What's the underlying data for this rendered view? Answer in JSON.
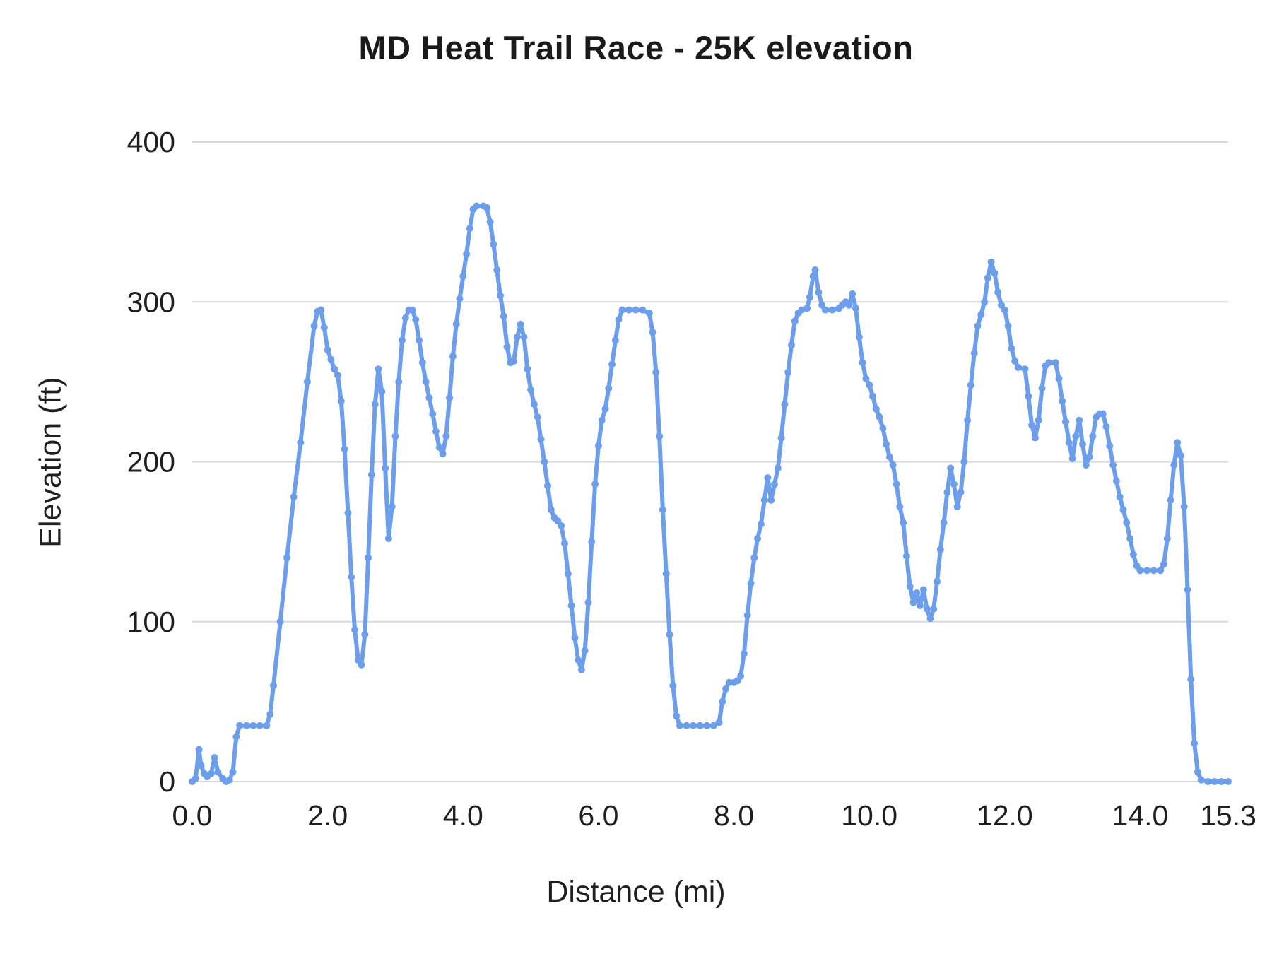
{
  "title": "MD Heat Trail Race - 25K elevation",
  "chart_data": {
    "type": "line",
    "title": "MD Heat Trail Race - 25K elevation",
    "xlabel": "Distance (mi)",
    "ylabel": "Elevation (ft)",
    "xlim": [
      0,
      15.3
    ],
    "ylim": [
      0,
      400
    ],
    "x_ticks": [
      0,
      2,
      4,
      6,
      8,
      10,
      12,
      14,
      15.3
    ],
    "x_tick_labels": [
      "0.0",
      "2.0",
      "4.0",
      "6.0",
      "8.0",
      "10.0",
      "12.0",
      "14.0",
      "15.3"
    ],
    "y_ticks": [
      0,
      100,
      200,
      300,
      400
    ],
    "y_tick_labels": [
      "0",
      "100",
      "200",
      "300",
      "400"
    ],
    "grid": "horizontal",
    "gridline_color": "#d9d9d9",
    "line_color": "#6d9eeb",
    "background_color": "#ffffff",
    "legend": "none",
    "series": [
      {
        "name": "Elevation",
        "points": [
          [
            0,
            0
          ],
          [
            0.05,
            2
          ],
          [
            0.1,
            20
          ],
          [
            0.13,
            10
          ],
          [
            0.18,
            5
          ],
          [
            0.22,
            3
          ],
          [
            0.28,
            5
          ],
          [
            0.33,
            15
          ],
          [
            0.38,
            6
          ],
          [
            0.45,
            2
          ],
          [
            0.5,
            0
          ],
          [
            0.55,
            1
          ],
          [
            0.6,
            6
          ],
          [
            0.65,
            28
          ],
          [
            0.7,
            35
          ],
          [
            0.8,
            35
          ],
          [
            0.9,
            35
          ],
          [
            1.0,
            35
          ],
          [
            1.1,
            35
          ],
          [
            1.15,
            42
          ],
          [
            1.2,
            60
          ],
          [
            1.3,
            100
          ],
          [
            1.4,
            140
          ],
          [
            1.5,
            178
          ],
          [
            1.6,
            212
          ],
          [
            1.7,
            250
          ],
          [
            1.8,
            285
          ],
          [
            1.85,
            294
          ],
          [
            1.9,
            295
          ],
          [
            1.95,
            284
          ],
          [
            2.0,
            270
          ],
          [
            2.05,
            264
          ],
          [
            2.1,
            258
          ],
          [
            2.15,
            254
          ],
          [
            2.2,
            238
          ],
          [
            2.25,
            208
          ],
          [
            2.3,
            168
          ],
          [
            2.35,
            128
          ],
          [
            2.4,
            95
          ],
          [
            2.45,
            76
          ],
          [
            2.5,
            73
          ],
          [
            2.55,
            92
          ],
          [
            2.6,
            140
          ],
          [
            2.65,
            192
          ],
          [
            2.7,
            236
          ],
          [
            2.75,
            258
          ],
          [
            2.8,
            244
          ],
          [
            2.85,
            196
          ],
          [
            2.9,
            152
          ],
          [
            2.95,
            172
          ],
          [
            3.0,
            216
          ],
          [
            3.05,
            250
          ],
          [
            3.1,
            276
          ],
          [
            3.15,
            290
          ],
          [
            3.2,
            295
          ],
          [
            3.25,
            295
          ],
          [
            3.3,
            289
          ],
          [
            3.35,
            276
          ],
          [
            3.4,
            262
          ],
          [
            3.45,
            250
          ],
          [
            3.5,
            240
          ],
          [
            3.55,
            230
          ],
          [
            3.6,
            219
          ],
          [
            3.65,
            209
          ],
          [
            3.7,
            205
          ],
          [
            3.75,
            216
          ],
          [
            3.8,
            240
          ],
          [
            3.85,
            266
          ],
          [
            3.9,
            286
          ],
          [
            3.95,
            302
          ],
          [
            4.0,
            316
          ],
          [
            4.05,
            330
          ],
          [
            4.1,
            346
          ],
          [
            4.15,
            358
          ],
          [
            4.2,
            360
          ],
          [
            4.3,
            360
          ],
          [
            4.35,
            359
          ],
          [
            4.4,
            350
          ],
          [
            4.45,
            336
          ],
          [
            4.5,
            320
          ],
          [
            4.55,
            304
          ],
          [
            4.6,
            291
          ],
          [
            4.65,
            272
          ],
          [
            4.7,
            262
          ],
          [
            4.75,
            263
          ],
          [
            4.8,
            278
          ],
          [
            4.85,
            286
          ],
          [
            4.9,
            278
          ],
          [
            4.95,
            258
          ],
          [
            5.0,
            245
          ],
          [
            5.05,
            236
          ],
          [
            5.1,
            228
          ],
          [
            5.15,
            214
          ],
          [
            5.2,
            200
          ],
          [
            5.25,
            185
          ],
          [
            5.3,
            170
          ],
          [
            5.35,
            165
          ],
          [
            5.4,
            163
          ],
          [
            5.45,
            160
          ],
          [
            5.5,
            149
          ],
          [
            5.55,
            130
          ],
          [
            5.6,
            110
          ],
          [
            5.65,
            90
          ],
          [
            5.7,
            76
          ],
          [
            5.75,
            70
          ],
          [
            5.8,
            82
          ],
          [
            5.85,
            112
          ],
          [
            5.9,
            150
          ],
          [
            5.95,
            186
          ],
          [
            6.0,
            210
          ],
          [
            6.05,
            226
          ],
          [
            6.1,
            233
          ],
          [
            6.15,
            246
          ],
          [
            6.2,
            261
          ],
          [
            6.25,
            276
          ],
          [
            6.3,
            289
          ],
          [
            6.35,
            295
          ],
          [
            6.45,
            295
          ],
          [
            6.55,
            295
          ],
          [
            6.65,
            295
          ],
          [
            6.75,
            293
          ],
          [
            6.8,
            281
          ],
          [
            6.85,
            256
          ],
          [
            6.9,
            216
          ],
          [
            6.95,
            170
          ],
          [
            7.0,
            130
          ],
          [
            7.05,
            92
          ],
          [
            7.1,
            60
          ],
          [
            7.15,
            41
          ],
          [
            7.2,
            35
          ],
          [
            7.3,
            35
          ],
          [
            7.4,
            35
          ],
          [
            7.5,
            35
          ],
          [
            7.6,
            35
          ],
          [
            7.7,
            35
          ],
          [
            7.78,
            37
          ],
          [
            7.83,
            50
          ],
          [
            7.88,
            58
          ],
          [
            7.93,
            62
          ],
          [
            8.0,
            62
          ],
          [
            8.05,
            63
          ],
          [
            8.1,
            66
          ],
          [
            8.15,
            80
          ],
          [
            8.2,
            104
          ],
          [
            8.25,
            124
          ],
          [
            8.3,
            140
          ],
          [
            8.35,
            152
          ],
          [
            8.4,
            161
          ],
          [
            8.45,
            176
          ],
          [
            8.5,
            190
          ],
          [
            8.55,
            176
          ],
          [
            8.6,
            186
          ],
          [
            8.65,
            196
          ],
          [
            8.7,
            215
          ],
          [
            8.75,
            236
          ],
          [
            8.8,
            256
          ],
          [
            8.85,
            273
          ],
          [
            8.9,
            288
          ],
          [
            8.95,
            293
          ],
          [
            9.0,
            295
          ],
          [
            9.08,
            296
          ],
          [
            9.12,
            303
          ],
          [
            9.17,
            316
          ],
          [
            9.2,
            320
          ],
          [
            9.25,
            306
          ],
          [
            9.3,
            298
          ],
          [
            9.35,
            295
          ],
          [
            9.45,
            295
          ],
          [
            9.55,
            296
          ],
          [
            9.6,
            298
          ],
          [
            9.65,
            300
          ],
          [
            9.7,
            298
          ],
          [
            9.75,
            305
          ],
          [
            9.8,
            296
          ],
          [
            9.85,
            278
          ],
          [
            9.9,
            262
          ],
          [
            9.95,
            252
          ],
          [
            10.0,
            248
          ],
          [
            10.05,
            241
          ],
          [
            10.1,
            233
          ],
          [
            10.15,
            228
          ],
          [
            10.2,
            221
          ],
          [
            10.25,
            211
          ],
          [
            10.3,
            203
          ],
          [
            10.35,
            198
          ],
          [
            10.4,
            186
          ],
          [
            10.45,
            172
          ],
          [
            10.5,
            162
          ],
          [
            10.55,
            141
          ],
          [
            10.6,
            122
          ],
          [
            10.65,
            112
          ],
          [
            10.7,
            118
          ],
          [
            10.75,
            110
          ],
          [
            10.8,
            120
          ],
          [
            10.85,
            108
          ],
          [
            10.9,
            102
          ],
          [
            10.95,
            108
          ],
          [
            11.0,
            125
          ],
          [
            11.05,
            145
          ],
          [
            11.1,
            162
          ],
          [
            11.15,
            181
          ],
          [
            11.2,
            196
          ],
          [
            11.25,
            186
          ],
          [
            11.3,
            172
          ],
          [
            11.35,
            181
          ],
          [
            11.4,
            200
          ],
          [
            11.45,
            226
          ],
          [
            11.5,
            248
          ],
          [
            11.55,
            268
          ],
          [
            11.6,
            285
          ],
          [
            11.65,
            292
          ],
          [
            11.7,
            300
          ],
          [
            11.75,
            315
          ],
          [
            11.8,
            325
          ],
          [
            11.85,
            318
          ],
          [
            11.9,
            306
          ],
          [
            11.95,
            298
          ],
          [
            12.0,
            295
          ],
          [
            12.05,
            285
          ],
          [
            12.1,
            271
          ],
          [
            12.15,
            263
          ],
          [
            12.2,
            259
          ],
          [
            12.3,
            258
          ],
          [
            12.35,
            241
          ],
          [
            12.4,
            223
          ],
          [
            12.45,
            215
          ],
          [
            12.5,
            226
          ],
          [
            12.55,
            246
          ],
          [
            12.6,
            260
          ],
          [
            12.65,
            262
          ],
          [
            12.75,
            262
          ],
          [
            12.8,
            252
          ],
          [
            12.85,
            238
          ],
          [
            12.9,
            225
          ],
          [
            12.95,
            212
          ],
          [
            13.0,
            202
          ],
          [
            13.05,
            216
          ],
          [
            13.1,
            226
          ],
          [
            13.15,
            211
          ],
          [
            13.2,
            198
          ],
          [
            13.25,
            203
          ],
          [
            13.3,
            216
          ],
          [
            13.35,
            228
          ],
          [
            13.4,
            230
          ],
          [
            13.45,
            230
          ],
          [
            13.5,
            222
          ],
          [
            13.55,
            210
          ],
          [
            13.6,
            198
          ],
          [
            13.65,
            188
          ],
          [
            13.7,
            178
          ],
          [
            13.75,
            170
          ],
          [
            13.8,
            162
          ],
          [
            13.85,
            152
          ],
          [
            13.9,
            142
          ],
          [
            13.95,
            135
          ],
          [
            14.0,
            132
          ],
          [
            14.1,
            132
          ],
          [
            14.2,
            132
          ],
          [
            14.3,
            132
          ],
          [
            14.35,
            136
          ],
          [
            14.4,
            152
          ],
          [
            14.45,
            176
          ],
          [
            14.5,
            198
          ],
          [
            14.55,
            212
          ],
          [
            14.6,
            204
          ],
          [
            14.65,
            172
          ],
          [
            14.7,
            120
          ],
          [
            14.75,
            64
          ],
          [
            14.8,
            24
          ],
          [
            14.85,
            6
          ],
          [
            14.9,
            1
          ],
          [
            15.0,
            0
          ],
          [
            15.1,
            0
          ],
          [
            15.2,
            0
          ],
          [
            15.3,
            0
          ]
        ]
      }
    ]
  }
}
